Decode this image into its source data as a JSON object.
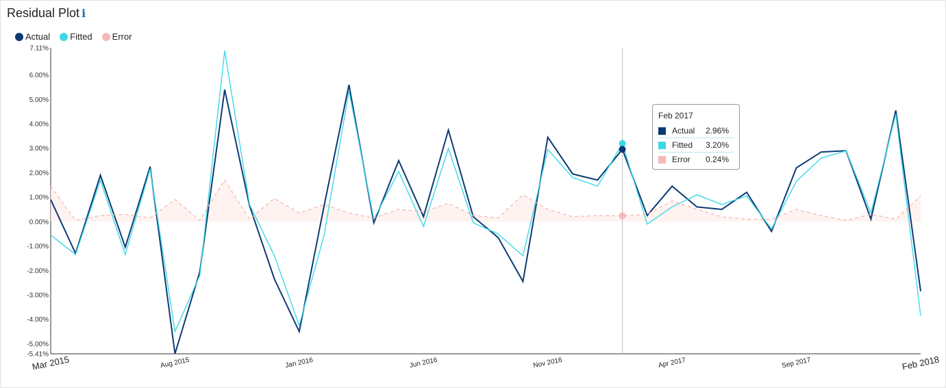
{
  "header": {
    "title": "Residual Plot",
    "info_icon": "info-icon"
  },
  "legend": [
    {
      "label": "Actual",
      "color": "#0b3a73"
    },
    {
      "label": "Fitted",
      "color": "#3dd8e6"
    },
    {
      "label": "Error",
      "color": "#f5b8b8"
    }
  ],
  "tooltip": {
    "title": "Feb 2017",
    "rows": [
      {
        "label": "Actual",
        "value": "2.96%",
        "color": "#0b3a73"
      },
      {
        "label": "Fitted",
        "value": "3.20%",
        "color": "#3dd8e6"
      },
      {
        "label": "Error",
        "value": "0.24%",
        "color": "#f5b8b8"
      }
    ]
  },
  "chart_data": {
    "type": "line",
    "title": "Residual Plot",
    "x": [
      "Mar 2015",
      "Apr 2015",
      "May 2015",
      "Jun 2015",
      "Jul 2015",
      "Aug 2015",
      "Sep 2015",
      "Oct 2015",
      "Nov 2015",
      "Dec 2015",
      "Jan 2016",
      "Feb 2016",
      "Mar 2016",
      "Apr 2016",
      "May 2016",
      "Jun 2016",
      "Jul 2016",
      "Aug 2016",
      "Sep 2016",
      "Oct 2016",
      "Nov 2016",
      "Dec 2016",
      "Jan 2017",
      "Feb 2017",
      "Mar 2017",
      "Apr 2017",
      "May 2017",
      "Jun 2017",
      "Jul 2017",
      "Aug 2017",
      "Sep 2017",
      "Oct 2017",
      "Nov 2017",
      "Dec 2017",
      "Jan 2018",
      "Feb 2018"
    ],
    "xticks": [
      {
        "index": 0,
        "label": "Mar 2015",
        "size": "large"
      },
      {
        "index": 5,
        "label": "Aug 2015",
        "size": "small"
      },
      {
        "index": 10,
        "label": "Jan 2016",
        "size": "small"
      },
      {
        "index": 15,
        "label": "Jun 2016",
        "size": "small"
      },
      {
        "index": 20,
        "label": "Nov 2016",
        "size": "small"
      },
      {
        "index": 25,
        "label": "Apr 2017",
        "size": "small"
      },
      {
        "index": 30,
        "label": "Sep 2017",
        "size": "small"
      },
      {
        "index": 35,
        "label": "Feb 2018",
        "size": "large"
      }
    ],
    "ylim": [
      -5.41,
      7.11
    ],
    "yticks": [
      {
        "value": 7.11,
        "label": "7.11%"
      },
      {
        "value": 6,
        "label": "6.00%"
      },
      {
        "value": 5,
        "label": "5.00%"
      },
      {
        "value": 4,
        "label": "4.00%"
      },
      {
        "value": 3,
        "label": "3.00%"
      },
      {
        "value": 2,
        "label": "2.00%"
      },
      {
        "value": 1,
        "label": "1.00%"
      },
      {
        "value": 0,
        "label": "0.00%"
      },
      {
        "value": -1,
        "label": "-1.00%"
      },
      {
        "value": -2,
        "label": "-2.00%"
      },
      {
        "value": -3,
        "label": "-3.00%"
      },
      {
        "value": -4,
        "label": "-4.00%"
      },
      {
        "value": -5,
        "label": "-5.00%"
      },
      {
        "value": -5.41,
        "label": "-5.41%"
      }
    ],
    "series": [
      {
        "name": "Actual",
        "color": "#0b3a73",
        "style": "solid",
        "values": [
          0.9,
          -1.3,
          1.9,
          -1.05,
          2.25,
          -5.41,
          -2.05,
          5.4,
          0.65,
          -2.35,
          -4.5,
          0.65,
          5.6,
          -0.05,
          2.5,
          0.2,
          3.75,
          0.2,
          -0.65,
          -2.45,
          3.45,
          1.95,
          1.7,
          2.96,
          0.25,
          1.45,
          0.6,
          0.5,
          1.2,
          -0.4,
          2.2,
          2.85,
          2.9,
          0.1,
          4.55,
          -2.85
        ]
      },
      {
        "name": "Fitted",
        "color": "#3dd8e6",
        "style": "solid",
        "values": [
          -0.55,
          -1.35,
          1.7,
          -1.35,
          2.15,
          -4.5,
          -2.2,
          7.0,
          0.7,
          -1.4,
          -4.25,
          -0.55,
          5.35,
          0.1,
          2.05,
          -0.2,
          3.0,
          -0.05,
          -0.5,
          -1.4,
          2.95,
          1.8,
          1.45,
          3.2,
          -0.1,
          0.6,
          1.1,
          0.7,
          1.05,
          -0.3,
          1.65,
          2.6,
          2.9,
          0.35,
          4.4,
          -3.85
        ]
      },
      {
        "name": "Error",
        "color": "#f5b8b8",
        "style": "dashed",
        "area": true,
        "values": [
          1.45,
          0.05,
          0.25,
          0.3,
          0.15,
          0.9,
          0.05,
          1.7,
          0.1,
          0.95,
          0.35,
          0.7,
          0.35,
          0.15,
          0.5,
          0.4,
          0.75,
          0.25,
          0.15,
          1.1,
          0.5,
          0.2,
          0.25,
          0.24,
          0.3,
          0.85,
          0.5,
          0.2,
          0.1,
          0.1,
          0.5,
          0.25,
          0.05,
          0.3,
          0.1,
          1.05
        ]
      }
    ],
    "crosshair_index": 23,
    "grid": false
  }
}
